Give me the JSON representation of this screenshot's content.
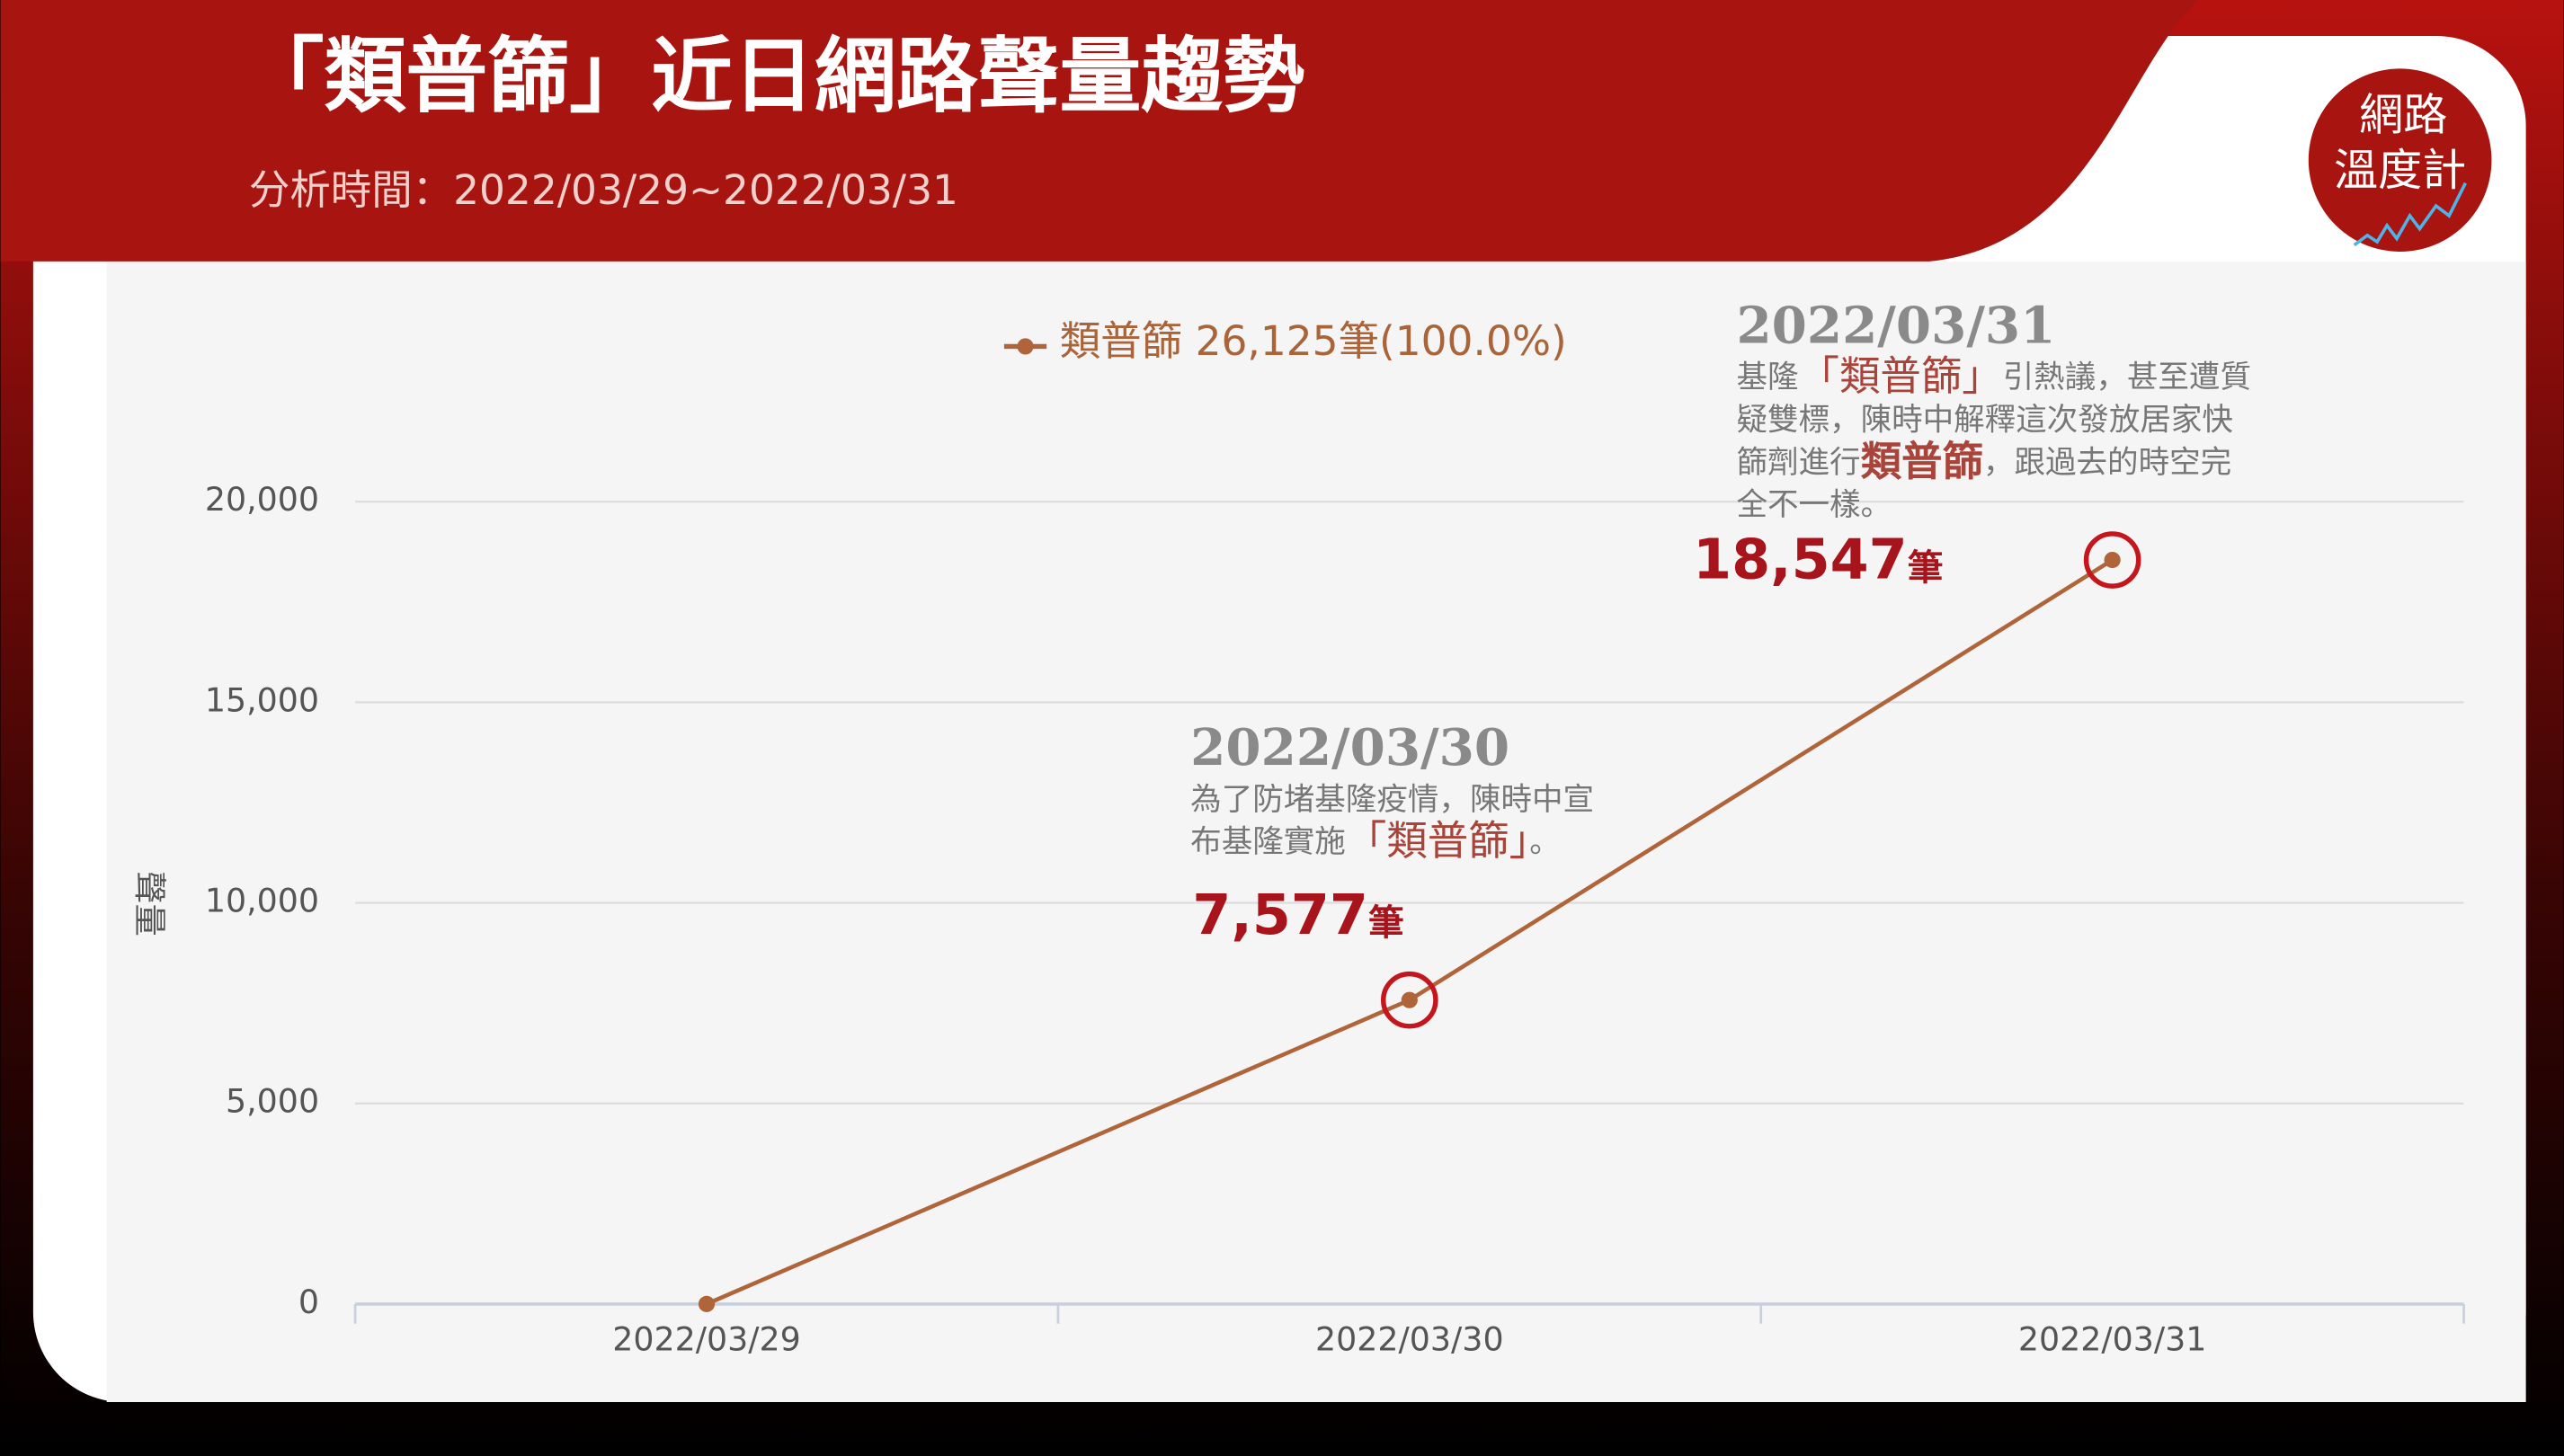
{
  "header": {
    "title": "「類普篩」近日網路聲量趨勢",
    "subtitle": "分析時間：2022/03/29~2022/03/31",
    "logo": [
      "網路",
      "溫度計"
    ]
  },
  "chart_data": {
    "type": "line",
    "categories": [
      "2022/03/29",
      "2022/03/30",
      "2022/03/31"
    ],
    "series": [
      {
        "name": "類普篩",
        "color": "#b0643a",
        "values": [
          1,
          7577,
          18547
        ]
      }
    ],
    "legend_note": "26,125筆(100.0%)",
    "value_labels": [
      null,
      "7,577",
      "18,547"
    ],
    "value_label_unit": "筆",
    "ylabel": "聲量",
    "ylim": [
      0,
      20000
    ],
    "yticks": [
      0,
      {
        "value": 5000,
        "label": "5,000"
      },
      {
        "value": 10000,
        "label": "10,000"
      },
      {
        "value": 15000,
        "label": "15,000"
      },
      {
        "value": 20000,
        "label": "20,000"
      }
    ],
    "grid": true,
    "annotations": [
      {
        "index": 1,
        "date": "2022/03/30",
        "lines": [
          [
            {
              "text": "為了防堵基隆疫情，陳時中宣"
            }
          ],
          [
            {
              "text": "布基隆實施"
            },
            {
              "text": "「類普篩」",
              "highlight": "plain"
            },
            {
              "text": "。"
            }
          ]
        ]
      },
      {
        "index": 2,
        "date": "2022/03/31",
        "lines": [
          [
            {
              "text": "基隆"
            },
            {
              "text": "「類普篩」",
              "highlight": "plain"
            },
            {
              "text": "引熱議，甚至遭質"
            }
          ],
          [
            {
              "text": "疑雙標，陳時中解釋這次發放居家快"
            }
          ],
          [
            {
              "text": "篩劑進行"
            },
            {
              "text": "類普篩",
              "highlight": "bold"
            },
            {
              "text": "，跟過去的時空完"
            }
          ],
          [
            {
              "text": "全不一樣。"
            }
          ]
        ]
      }
    ]
  }
}
